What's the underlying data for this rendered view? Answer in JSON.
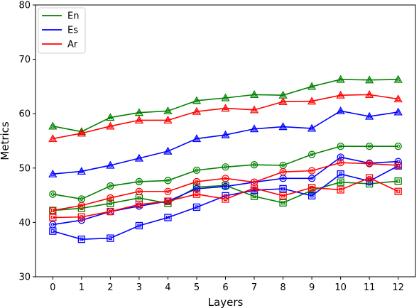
{
  "chart_data": {
    "type": "line",
    "xlabel": "Layers",
    "ylabel": "Metrics",
    "xlim": [
      -0.6,
      12.6
    ],
    "ylim": [
      30,
      80
    ],
    "xticks": [
      0,
      1,
      2,
      3,
      4,
      5,
      6,
      7,
      8,
      9,
      10,
      11,
      12
    ],
    "yticks": [
      30,
      40,
      50,
      60,
      70,
      80
    ],
    "grid": false,
    "legend_position": "top-left",
    "legend": [
      {
        "name": "En",
        "color": "#008000"
      },
      {
        "name": "Es",
        "color": "#0000ff"
      },
      {
        "name": "Ar",
        "color": "#ff0000"
      }
    ],
    "x": [
      0,
      1,
      2,
      3,
      4,
      5,
      6,
      7,
      8,
      9,
      10,
      11,
      12
    ],
    "series": [
      {
        "language": "En",
        "color": "#008000",
        "marker": "triangle",
        "values": [
          57.7,
          56.7,
          59.3,
          60.2,
          60.5,
          62.4,
          62.9,
          63.5,
          63.4,
          65.0,
          66.3,
          66.2,
          66.3
        ]
      },
      {
        "language": "En",
        "color": "#008000",
        "marker": "circle",
        "values": [
          45.2,
          44.3,
          46.7,
          47.5,
          47.7,
          49.6,
          50.2,
          50.6,
          50.5,
          52.5,
          54.0,
          54.0,
          54.0
        ]
      },
      {
        "language": "En",
        "color": "#008000",
        "marker": "square",
        "values": [
          42.2,
          42.6,
          43.5,
          44.5,
          43.5,
          46.5,
          46.8,
          44.8,
          43.6,
          45.9,
          47.4,
          47.1,
          47.6
        ]
      },
      {
        "language": "Es",
        "color": "#0000ff",
        "marker": "triangle",
        "values": [
          48.9,
          49.4,
          50.5,
          51.8,
          53.1,
          55.4,
          56.1,
          57.2,
          57.6,
          57.3,
          60.5,
          59.5,
          60.3
        ]
      },
      {
        "language": "Es",
        "color": "#0000ff",
        "marker": "circle",
        "values": [
          39.6,
          40.4,
          42.0,
          43.0,
          43.9,
          46.2,
          46.6,
          47.4,
          48.1,
          48.1,
          52.0,
          50.9,
          51.2
        ]
      },
      {
        "language": "Es",
        "color": "#0000ff",
        "marker": "square",
        "values": [
          38.4,
          36.9,
          37.1,
          39.4,
          40.9,
          42.8,
          44.9,
          45.9,
          46.2,
          44.9,
          48.9,
          47.6,
          50.4
        ]
      },
      {
        "language": "Ar",
        "color": "#ff0000",
        "marker": "triangle",
        "values": [
          55.4,
          56.4,
          57.7,
          58.8,
          58.8,
          60.4,
          61.0,
          60.7,
          62.2,
          62.3,
          63.4,
          63.5,
          62.7
        ]
      },
      {
        "language": "Ar",
        "color": "#ff0000",
        "marker": "circle",
        "values": [
          42.2,
          43.1,
          44.5,
          45.7,
          45.7,
          47.5,
          48.1,
          47.4,
          49.3,
          49.5,
          51.0,
          50.8,
          50.5
        ]
      },
      {
        "language": "Ar",
        "color": "#ff0000",
        "marker": "square",
        "values": [
          40.9,
          41.0,
          42.0,
          43.3,
          43.9,
          45.2,
          44.3,
          46.3,
          44.9,
          46.4,
          46.0,
          48.2,
          45.7
        ]
      }
    ]
  }
}
